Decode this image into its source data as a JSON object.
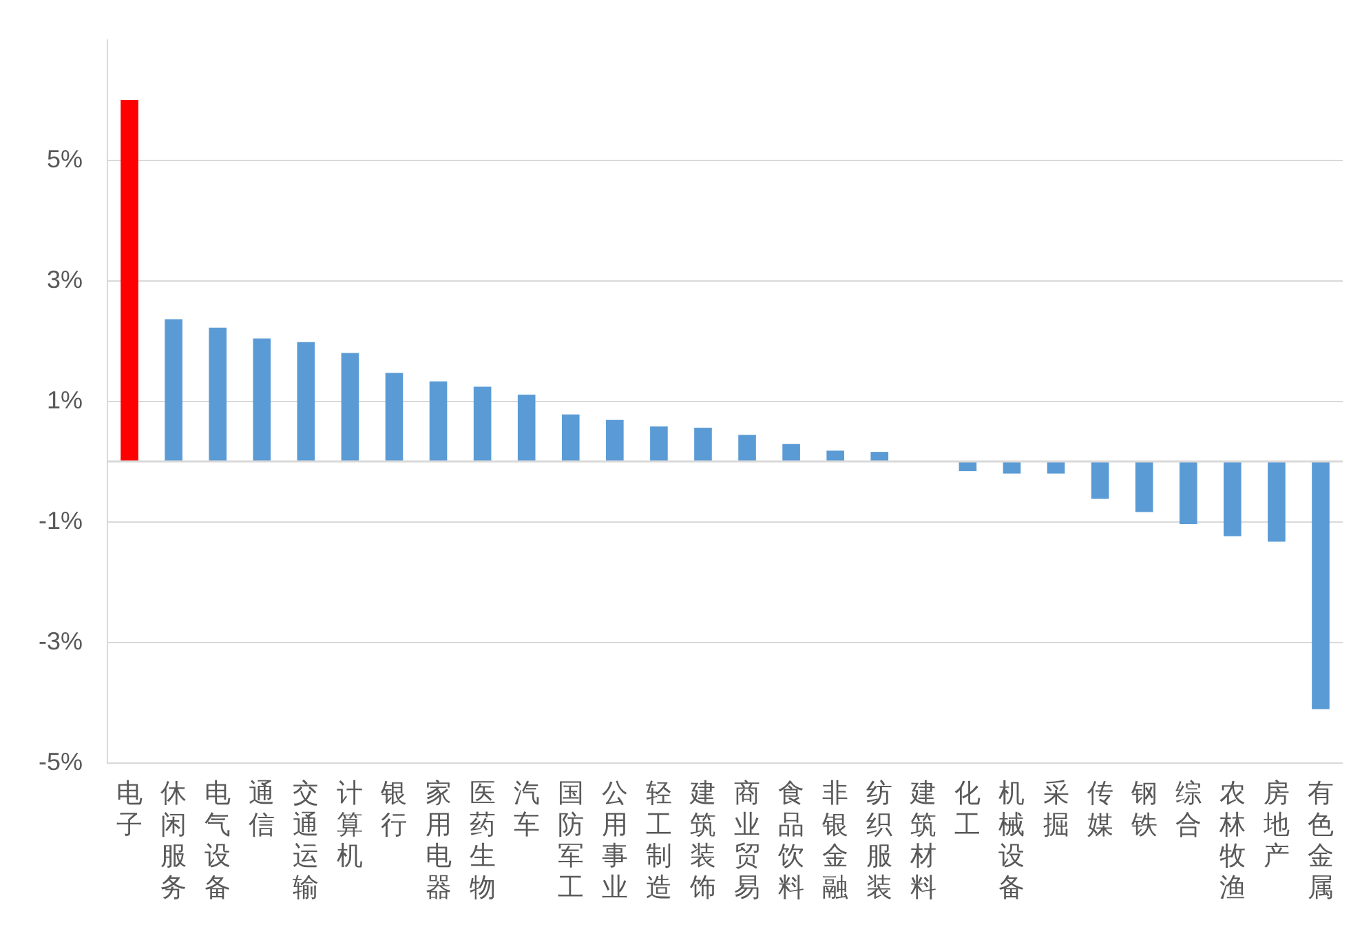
{
  "chart_data": {
    "type": "bar",
    "categories": [
      "电子",
      "休闲服务",
      "电气设备",
      "通信",
      "交通运输",
      "计算机",
      "银行",
      "家用电器",
      "医药生物",
      "汽车",
      "国防军工",
      "公用事业",
      "轻工制造",
      "建筑装饰",
      "商业贸易",
      "食品饮料",
      "非银金融",
      "纺织服装",
      "建筑材料",
      "化工",
      "机械设备",
      "采掘",
      "传媒",
      "钢铁",
      "综合",
      "农林牧渔",
      "房地产",
      "有色金属"
    ],
    "values": [
      6.0,
      2.36,
      2.22,
      2.04,
      1.98,
      1.8,
      1.47,
      1.33,
      1.24,
      1.11,
      0.78,
      0.69,
      0.58,
      0.56,
      0.44,
      0.29,
      0.18,
      0.16,
      null,
      -0.16,
      -0.2,
      -0.2,
      -0.62,
      -0.84,
      -1.04,
      -1.24,
      -1.33,
      -4.11
    ],
    "colors": [
      "#ff0000",
      "#5b9bd5",
      "#5b9bd5",
      "#5b9bd5",
      "#5b9bd5",
      "#5b9bd5",
      "#5b9bd5",
      "#5b9bd5",
      "#5b9bd5",
      "#5b9bd5",
      "#5b9bd5",
      "#5b9bd5",
      "#5b9bd5",
      "#5b9bd5",
      "#5b9bd5",
      "#5b9bd5",
      "#5b9bd5",
      "#5b9bd5",
      "#5b9bd5",
      "#5b9bd5",
      "#5b9bd5",
      "#5b9bd5",
      "#5b9bd5",
      "#5b9bd5",
      "#5b9bd5",
      "#5b9bd5",
      "#5b9bd5",
      "#5b9bd5"
    ],
    "ylim": [
      -5,
      7
    ],
    "yticks": [
      {
        "value": -5,
        "label": "-5%"
      },
      {
        "value": -3,
        "label": "-3%"
      },
      {
        "value": -1,
        "label": "-1%"
      },
      {
        "value": 1,
        "label": "1%"
      },
      {
        "value": 3,
        "label": "3%"
      },
      {
        "value": 5,
        "label": "5%"
      }
    ],
    "grid": "y",
    "legend": false
  }
}
